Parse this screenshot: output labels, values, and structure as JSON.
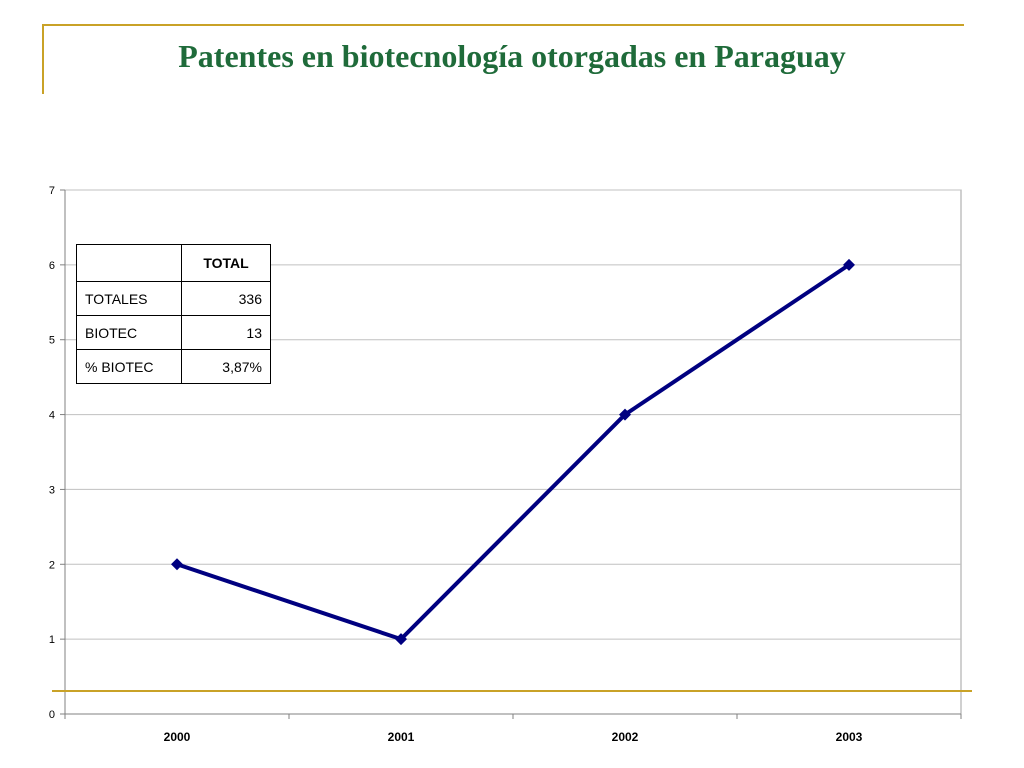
{
  "slide": {
    "title": "Patentes en biotecnología otorgadas en Paraguay"
  },
  "colors": {
    "title": "#1f6b3a",
    "accent_lines": "#c9a227",
    "series_line": "#000080",
    "grid": "#c0c0c0"
  },
  "chart_data": {
    "type": "line",
    "title": "",
    "xlabel": "",
    "ylabel": "",
    "categories": [
      "2000",
      "2001",
      "2002",
      "2003"
    ],
    "series": [
      {
        "values": [
          2,
          1,
          4,
          6
        ]
      }
    ],
    "ylim": [
      0,
      7
    ],
    "yticks": [
      0,
      1,
      2,
      3,
      4,
      5,
      6,
      7
    ],
    "grid": true,
    "legend": "none",
    "marker": "diamond"
  },
  "table": {
    "header": [
      "",
      "TOTAL"
    ],
    "rows": [
      {
        "label": "TOTALES",
        "value": "336"
      },
      {
        "label": "BIOTEC",
        "value": "13"
      },
      {
        "label": "% BIOTEC",
        "value": "3,87%"
      }
    ]
  }
}
